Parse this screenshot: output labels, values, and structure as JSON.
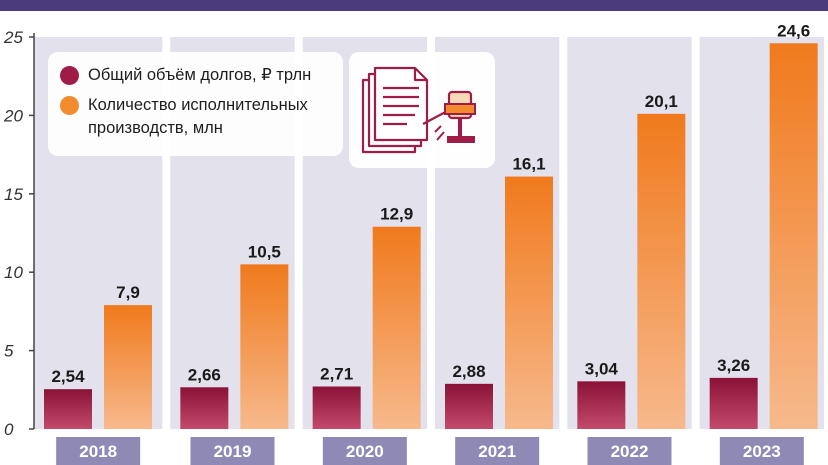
{
  "chart_data": {
    "type": "bar",
    "categories": [
      "2018",
      "2019",
      "2020",
      "2021",
      "2022",
      "2023"
    ],
    "series": [
      {
        "name": "Общий объём долгов, ₽ трлн",
        "values": [
          2.54,
          2.66,
          2.71,
          2.88,
          3.04,
          3.26
        ],
        "labels": [
          "2,54",
          "2,66",
          "2,71",
          "2,88",
          "3,04",
          "3,26"
        ],
        "color": "#9e1c45"
      },
      {
        "name": "Количество исполнительных производств, млн",
        "name_lines": [
          "Количество исполнительных",
          "производств, млн"
        ],
        "values": [
          7.9,
          10.5,
          12.9,
          16.1,
          20.1,
          24.6
        ],
        "labels": [
          "7,9",
          "10,5",
          "12,9",
          "16,1",
          "20,1",
          "24,6"
        ],
        "color": "#f28a2e"
      }
    ],
    "ylim": [
      0,
      25
    ],
    "yticks": [
      0,
      5,
      10,
      15,
      20,
      25
    ],
    "grid": false,
    "legend": "top-left",
    "colors": {
      "header": "#4b3a7c",
      "panel": "#e3e1ec",
      "year_label_bg": "#8f8ab5"
    }
  },
  "icons": {
    "legend_illustration": "document-gavel-icon"
  }
}
